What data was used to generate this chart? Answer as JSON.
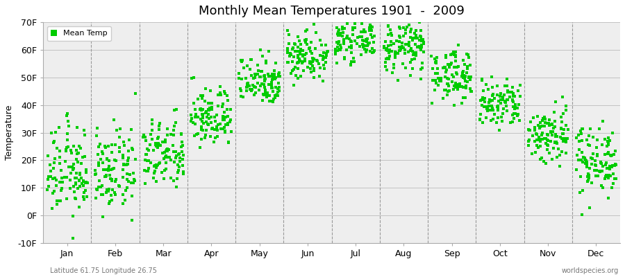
{
  "title": "Monthly Mean Temperatures 1901  -  2009",
  "ylabel": "Temperature",
  "xlabel_months": [
    "Jan",
    "Feb",
    "Mar",
    "Apr",
    "May",
    "Jun",
    "Jul",
    "Aug",
    "Sep",
    "Oct",
    "Nov",
    "Dec"
  ],
  "footer_left": "Latitude 61.75 Longitude 26.75",
  "footer_right": "worldspecies.org",
  "legend_label": "Mean Temp",
  "dot_color": "#00cc00",
  "background_color": "#ffffff",
  "plot_bg_color": "#eeeeee",
  "ylim": [
    -10,
    70
  ],
  "yticks": [
    -10,
    0,
    10,
    20,
    30,
    40,
    50,
    60,
    70
  ],
  "ytick_labels": [
    "-10F",
    "0F",
    "10F",
    "20F",
    "30F",
    "40F",
    "50F",
    "60F",
    "70F"
  ],
  "years": 109,
  "monthly_means_fahrenheit": [
    15.8,
    15.8,
    22.0,
    35.6,
    49.1,
    58.1,
    63.5,
    60.8,
    50.9,
    40.1,
    29.3,
    20.3
  ],
  "monthly_stds_fahrenheit": [
    8.1,
    7.2,
    6.3,
    5.4,
    4.5,
    4.5,
    3.6,
    4.5,
    4.5,
    4.5,
    5.4,
    6.3
  ]
}
